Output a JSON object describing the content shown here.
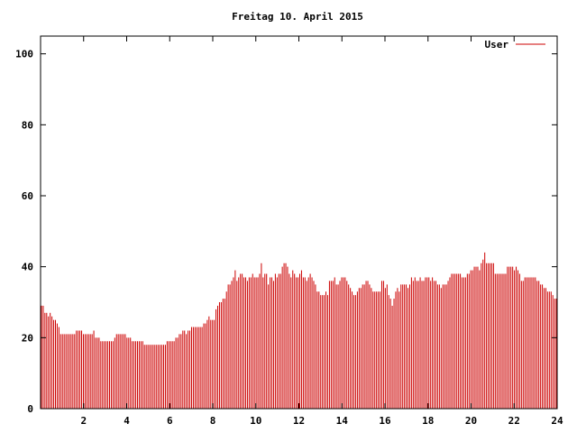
{
  "chart_data": {
    "type": "bar",
    "title": "Freitag 10. April 2015",
    "xlabel": "",
    "ylabel": "",
    "xlim": [
      0,
      24
    ],
    "ylim": [
      0,
      105
    ],
    "x_ticks": [
      2,
      4,
      6,
      8,
      10,
      12,
      14,
      16,
      18,
      20,
      22,
      24
    ],
    "y_ticks": [
      0,
      20,
      40,
      60,
      80,
      100
    ],
    "legend_position": "top-right",
    "grid": false,
    "step_minutes": 5,
    "series": [
      {
        "name": "User",
        "color": "#cc0000",
        "values": [
          29,
          29,
          27,
          27,
          26,
          27,
          26,
          25,
          25,
          24,
          23,
          21,
          21,
          21,
          21,
          21,
          21,
          21,
          21,
          21,
          22,
          22,
          22,
          22,
          21,
          21,
          21,
          21,
          21,
          21,
          22,
          20,
          20,
          20,
          19,
          19,
          19,
          19,
          19,
          19,
          19,
          19,
          20,
          21,
          21,
          21,
          21,
          21,
          21,
          20,
          20,
          20,
          19,
          19,
          19,
          19,
          19,
          19,
          19,
          18,
          18,
          18,
          18,
          18,
          18,
          18,
          18,
          18,
          18,
          18,
          18,
          18,
          19,
          19,
          19,
          19,
          19,
          20,
          20,
          21,
          21,
          22,
          22,
          21,
          22,
          22,
          23,
          23,
          23,
          23,
          23,
          23,
          23,
          24,
          24,
          25,
          26,
          25,
          25,
          25,
          28,
          29,
          30,
          30,
          31,
          31,
          33,
          35,
          35,
          36,
          37,
          39,
          36,
          37,
          38,
          38,
          37,
          37,
          36,
          37,
          37,
          38,
          37,
          37,
          37,
          38,
          41,
          37,
          38,
          38,
          35,
          37,
          37,
          36,
          38,
          37,
          38,
          38,
          40,
          41,
          41,
          40,
          38,
          37,
          39,
          38,
          37,
          37,
          38,
          39,
          37,
          37,
          36,
          37,
          38,
          37,
          36,
          35,
          33,
          33,
          32,
          32,
          32,
          33,
          32,
          36,
          36,
          36,
          37,
          35,
          35,
          36,
          37,
          37,
          37,
          36,
          35,
          34,
          33,
          32,
          32,
          33,
          34,
          34,
          35,
          35,
          36,
          36,
          35,
          34,
          33,
          33,
          33,
          33,
          33,
          36,
          36,
          34,
          35,
          32,
          31,
          29,
          31,
          33,
          34,
          33,
          35,
          35,
          35,
          35,
          34,
          35,
          37,
          36,
          37,
          36,
          36,
          37,
          36,
          36,
          37,
          37,
          37,
          36,
          37,
          36,
          36,
          35,
          35,
          34,
          35,
          35,
          35,
          36,
          37,
          38,
          38,
          38,
          38,
          38,
          38,
          37,
          37,
          37,
          38,
          38,
          39,
          39,
          40,
          40,
          40,
          39,
          41,
          42,
          44,
          41,
          41,
          41,
          41,
          41,
          38,
          38,
          38,
          38,
          38,
          38,
          38,
          40,
          40,
          40,
          40,
          39,
          40,
          39,
          38,
          36,
          36,
          37,
          37,
          37,
          37,
          37,
          37,
          37,
          36,
          36,
          35,
          35,
          34,
          34,
          33,
          33,
          33,
          32,
          31,
          31
        ]
      }
    ]
  }
}
